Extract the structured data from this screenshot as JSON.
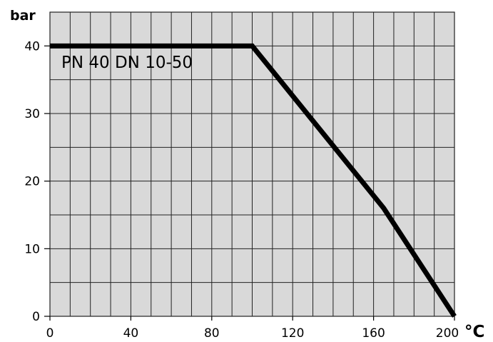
{
  "chart_data": {
    "type": "line",
    "title": "",
    "ylabel": "bar",
    "xlabel": "°C",
    "xlim": [
      0,
      200
    ],
    "ylim": [
      0,
      45
    ],
    "x_ticks": [
      0,
      40,
      80,
      120,
      160,
      200
    ],
    "y_ticks": [
      0,
      10,
      20,
      30,
      40
    ],
    "x_grid_step": 10,
    "y_grid_step": 5,
    "grid": true,
    "plot_background": "#d9d9d9",
    "grid_color": "#222222",
    "series": [
      {
        "name": "PN 40  DN 10-50",
        "color": "#000000",
        "x": [
          0,
          100,
          165,
          200
        ],
        "y": [
          40,
          40,
          16,
          0
        ]
      }
    ]
  }
}
